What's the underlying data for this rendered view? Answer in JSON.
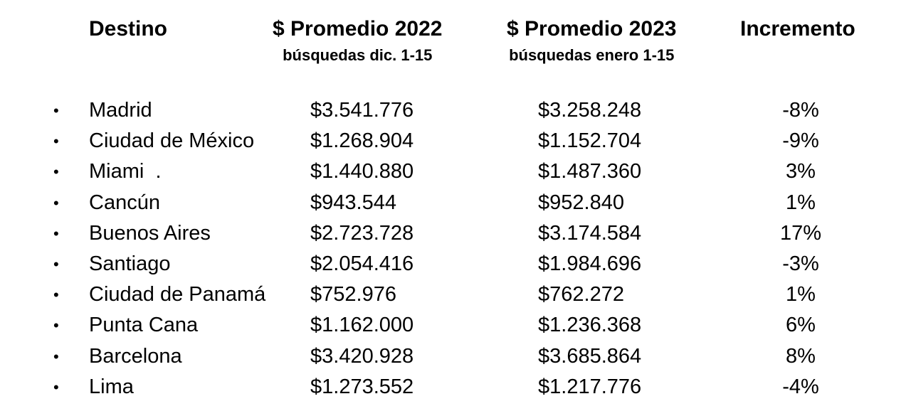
{
  "headers": {
    "destino": "Destino",
    "col2022": {
      "title": "$ Promedio 2022",
      "subtitle": "búsquedas dic. 1-15"
    },
    "col2023": {
      "title": "$ Promedio 2023",
      "subtitle": "búsquedas enero 1-15"
    },
    "incremento": "Incremento"
  },
  "rows": [
    {
      "destino": "Madrid",
      "p2022": "$3.541.776",
      "p2023": "$3.258.248",
      "incremento": "-8%"
    },
    {
      "destino": "Ciudad de México",
      "p2022": "$1.268.904",
      "p2023": "$1.152.704",
      "incremento": "-9%"
    },
    {
      "destino": "Miami  .",
      "p2022": "$1.440.880",
      "p2023": "$1.487.360",
      "incremento": "3%"
    },
    {
      "destino": "Cancún",
      "p2022": "$943.544",
      "p2023": "$952.840",
      "incremento": "1%"
    },
    {
      "destino": "Buenos Aires",
      "p2022": "$2.723.728",
      "p2023": "$3.174.584",
      "incremento": "17%"
    },
    {
      "destino": "Santiago",
      "p2022": "$2.054.416",
      "p2023": "$1.984.696",
      "incremento": "-3%"
    },
    {
      "destino": "Ciudad de Panamá",
      "p2022": "$752.976",
      "p2023": "$762.272",
      "incremento": "1%"
    },
    {
      "destino": "Punta Cana",
      "p2022": "$1.162.000",
      "p2023": "$1.236.368",
      "incremento": "6%"
    },
    {
      "destino": "Barcelona",
      "p2022": "$3.420.928",
      "p2023": "$3.685.864",
      "incremento": "8%"
    },
    {
      "destino": "Lima",
      "p2022": "$1.273.552",
      "p2023": "$1.217.776",
      "incremento": "-4%"
    }
  ],
  "bullet_glyph": "•"
}
